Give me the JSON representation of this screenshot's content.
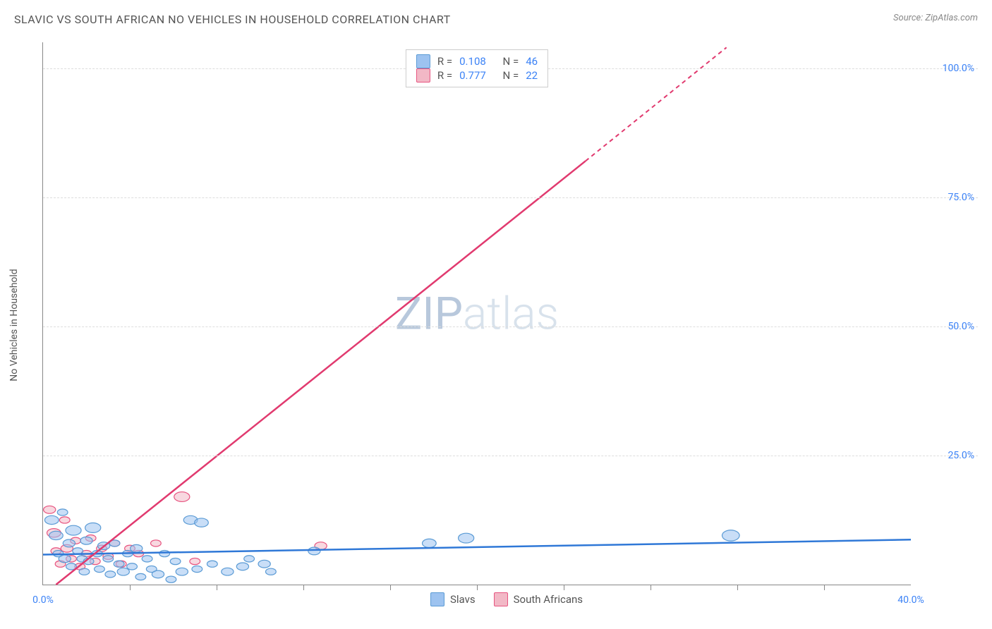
{
  "header": {
    "title": "SLAVIC VS SOUTH AFRICAN NO VEHICLES IN HOUSEHOLD CORRELATION CHART",
    "source": "Source: ZipAtlas.com"
  },
  "axes": {
    "y_label": "No Vehicles in Household",
    "x_min": 0,
    "x_max": 40,
    "y_min": 0,
    "y_max": 105,
    "y_ticks": [
      {
        "v": 25,
        "label": "25.0%"
      },
      {
        "v": 50,
        "label": "50.0%"
      },
      {
        "v": 75,
        "label": "75.0%"
      },
      {
        "v": 100,
        "label": "100.0%"
      }
    ],
    "x_ticks_major": [
      0,
      40
    ],
    "x_tick_labels": [
      {
        "v": 0,
        "label": "0.0%"
      },
      {
        "v": 40,
        "label": "40.0%"
      }
    ],
    "x_ticks_minor": [
      4,
      8,
      12,
      16,
      20,
      24,
      28,
      32,
      36
    ],
    "grid_color": "#dddddd",
    "axis_color": "#888888"
  },
  "watermark": {
    "part1": "ZIP",
    "part2": "atlas"
  },
  "series": {
    "slavs": {
      "label": "Slavs",
      "color_fill": "#9dc3f0",
      "color_stroke": "#5b9bd5",
      "r_stat": "0.108",
      "n_stat": "46",
      "line_color": "#2f78d7",
      "trend": {
        "x1": 0,
        "y1": 5.8,
        "x2": 40,
        "y2": 8.7
      },
      "points": [
        {
          "x": 0.4,
          "y": 12.5,
          "r": 8
        },
        {
          "x": 0.6,
          "y": 9.5,
          "r": 8
        },
        {
          "x": 0.7,
          "y": 6,
          "r": 6
        },
        {
          "x": 0.9,
          "y": 14,
          "r": 6
        },
        {
          "x": 1.0,
          "y": 5,
          "r": 7
        },
        {
          "x": 1.2,
          "y": 8,
          "r": 7
        },
        {
          "x": 1.3,
          "y": 3.5,
          "r": 6
        },
        {
          "x": 1.4,
          "y": 10.5,
          "r": 9
        },
        {
          "x": 1.6,
          "y": 6.5,
          "r": 6
        },
        {
          "x": 1.8,
          "y": 5,
          "r": 6
        },
        {
          "x": 1.9,
          "y": 2.5,
          "r": 6
        },
        {
          "x": 2.0,
          "y": 8.5,
          "r": 7
        },
        {
          "x": 2.1,
          "y": 4.5,
          "r": 6
        },
        {
          "x": 2.3,
          "y": 11,
          "r": 9
        },
        {
          "x": 2.5,
          "y": 6,
          "r": 6
        },
        {
          "x": 2.6,
          "y": 3,
          "r": 6
        },
        {
          "x": 2.8,
          "y": 7.5,
          "r": 7
        },
        {
          "x": 3.0,
          "y": 5,
          "r": 6
        },
        {
          "x": 3.1,
          "y": 2,
          "r": 6
        },
        {
          "x": 3.3,
          "y": 8,
          "r": 6
        },
        {
          "x": 3.5,
          "y": 4,
          "r": 6
        },
        {
          "x": 3.7,
          "y": 2.5,
          "r": 7
        },
        {
          "x": 3.9,
          "y": 6,
          "r": 6
        },
        {
          "x": 4.1,
          "y": 3.5,
          "r": 6
        },
        {
          "x": 4.3,
          "y": 7,
          "r": 7
        },
        {
          "x": 4.5,
          "y": 1.5,
          "r": 6
        },
        {
          "x": 4.8,
          "y": 5,
          "r": 6
        },
        {
          "x": 5.0,
          "y": 3,
          "r": 6
        },
        {
          "x": 5.3,
          "y": 2,
          "r": 7
        },
        {
          "x": 5.6,
          "y": 6,
          "r": 6
        },
        {
          "x": 5.9,
          "y": 1,
          "r": 6
        },
        {
          "x": 6.1,
          "y": 4.5,
          "r": 6
        },
        {
          "x": 6.4,
          "y": 2.5,
          "r": 7
        },
        {
          "x": 6.8,
          "y": 12.5,
          "r": 8
        },
        {
          "x": 7.1,
          "y": 3,
          "r": 6
        },
        {
          "x": 7.3,
          "y": 12,
          "r": 8
        },
        {
          "x": 7.8,
          "y": 4,
          "r": 6
        },
        {
          "x": 8.5,
          "y": 2.5,
          "r": 7
        },
        {
          "x": 9.2,
          "y": 3.5,
          "r": 7
        },
        {
          "x": 9.5,
          "y": 5,
          "r": 6
        },
        {
          "x": 10.2,
          "y": 4,
          "r": 7
        },
        {
          "x": 10.5,
          "y": 2.5,
          "r": 6
        },
        {
          "x": 12.5,
          "y": 6.5,
          "r": 7
        },
        {
          "x": 17.8,
          "y": 8,
          "r": 8
        },
        {
          "x": 19.5,
          "y": 9,
          "r": 9
        },
        {
          "x": 31.7,
          "y": 9.5,
          "r": 10
        }
      ]
    },
    "south_africans": {
      "label": "South Africans",
      "color_fill": "#f2b8c6",
      "color_stroke": "#e75480",
      "r_stat": "0.777",
      "n_stat": "22",
      "line_color": "#e13a6f",
      "trend_solid": {
        "x1": 0.6,
        "y1": 0,
        "x2": 25,
        "y2": 82
      },
      "trend_dash": {
        "x1": 25,
        "y1": 82,
        "x2": 31.5,
        "y2": 104
      },
      "points": [
        {
          "x": 0.3,
          "y": 14.5,
          "r": 7
        },
        {
          "x": 0.5,
          "y": 10,
          "r": 8
        },
        {
          "x": 0.6,
          "y": 6.5,
          "r": 6
        },
        {
          "x": 0.8,
          "y": 4,
          "r": 6
        },
        {
          "x": 1.0,
          "y": 12.5,
          "r": 6
        },
        {
          "x": 1.1,
          "y": 7,
          "r": 7
        },
        {
          "x": 1.3,
          "y": 5,
          "r": 6
        },
        {
          "x": 1.5,
          "y": 8.5,
          "r": 6
        },
        {
          "x": 1.7,
          "y": 3.5,
          "r": 6
        },
        {
          "x": 2.0,
          "y": 6,
          "r": 6
        },
        {
          "x": 2.2,
          "y": 9,
          "r": 6
        },
        {
          "x": 2.4,
          "y": 4.5,
          "r": 6
        },
        {
          "x": 2.7,
          "y": 7,
          "r": 6
        },
        {
          "x": 3.0,
          "y": 5.5,
          "r": 6
        },
        {
          "x": 3.3,
          "y": 8,
          "r": 6
        },
        {
          "x": 3.6,
          "y": 4,
          "r": 6
        },
        {
          "x": 4.0,
          "y": 7,
          "r": 6
        },
        {
          "x": 4.4,
          "y": 6,
          "r": 6
        },
        {
          "x": 5.2,
          "y": 8,
          "r": 6
        },
        {
          "x": 6.4,
          "y": 17,
          "r": 9
        },
        {
          "x": 7.0,
          "y": 4.5,
          "r": 6
        },
        {
          "x": 12.8,
          "y": 7.5,
          "r": 7
        }
      ]
    }
  },
  "legend_top": {
    "r_label": "R =",
    "n_label": "N ="
  },
  "legend_bottom": {
    "items": [
      "slavs",
      "south_africans"
    ]
  }
}
